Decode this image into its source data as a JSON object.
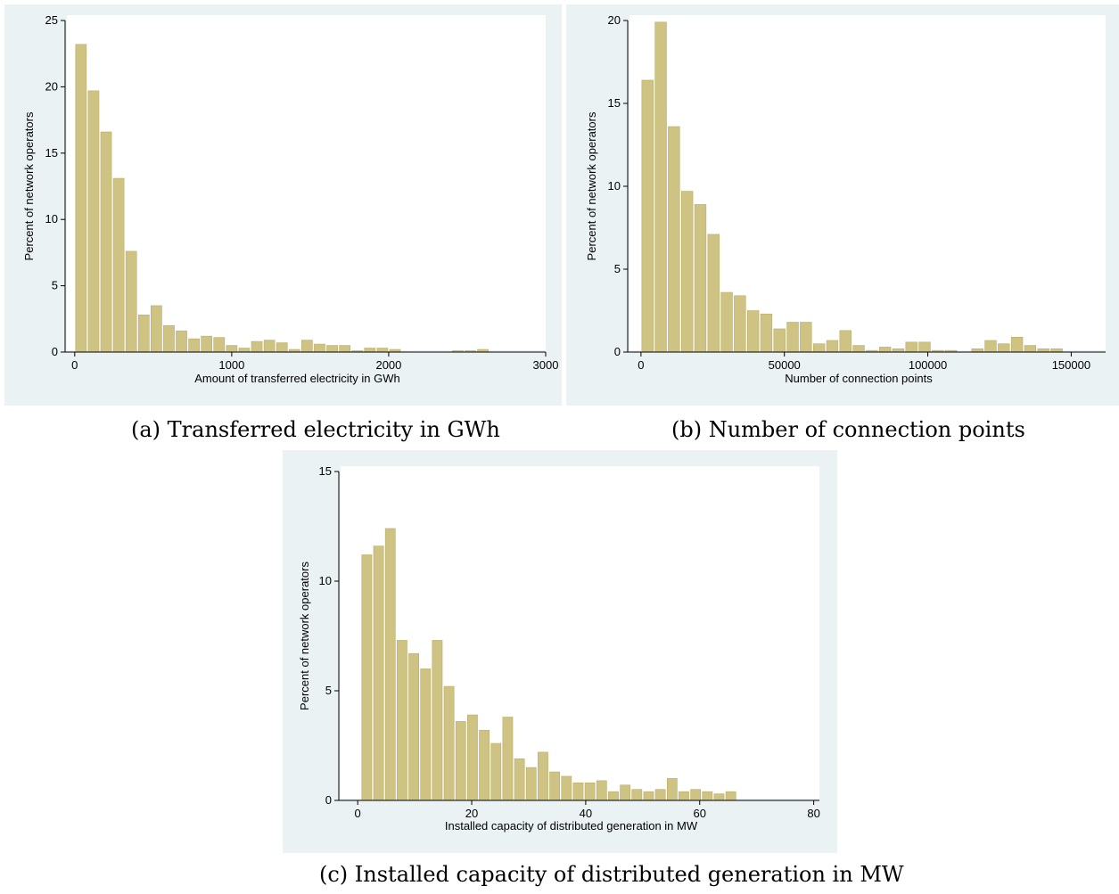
{
  "captions": {
    "a": "(a) Transferred electricity in GWh",
    "b": "(b) Number of connection points",
    "c": "(c) Installed capacity of distributed generation in MW"
  },
  "colors": {
    "bar": "#cfc383",
    "bar_edge": "#b9ad6a",
    "panel": "#eaf2f3",
    "plot": "#ffffff",
    "axis": "#000000"
  },
  "chart_data": [
    {
      "id": "a",
      "type": "bar",
      "xlabel": "Amount of transferred electricity in GWh",
      "ylabel": "Percent of network operators",
      "xlim": [
        -50,
        3000
      ],
      "ylim": [
        0,
        25
      ],
      "xticks": [
        0,
        1000,
        2000,
        3000
      ],
      "yticks": [
        0,
        5,
        10,
        15,
        20,
        25
      ],
      "bin_width": 80,
      "first_bin_center": 40,
      "values": [
        23.2,
        19.7,
        16.6,
        13.1,
        7.6,
        2.8,
        3.5,
        2.0,
        1.6,
        1.0,
        1.2,
        1.1,
        0.5,
        0.3,
        0.8,
        0.9,
        0.7,
        0.2,
        0.9,
        0.6,
        0.5,
        0.5,
        0.1,
        0.3,
        0.3,
        0.2,
        0.0,
        0.0,
        0.0,
        0.0,
        0.1,
        0.1,
        0.2
      ]
    },
    {
      "id": "b",
      "type": "bar",
      "xlabel": "Number of connection points",
      "ylabel": "Percent of network operators",
      "xlim": [
        -4000,
        162000
      ],
      "ylim": [
        0,
        20
      ],
      "xticks": [
        0,
        50000,
        100000,
        150000
      ],
      "yticks": [
        0,
        5,
        10,
        15,
        20
      ],
      "bin_width": 4600,
      "first_bin_center": 2300,
      "values": [
        16.4,
        19.9,
        13.6,
        9.7,
        8.9,
        7.1,
        3.6,
        3.4,
        2.5,
        2.3,
        1.4,
        1.8,
        1.8,
        0.5,
        0.7,
        1.3,
        0.4,
        0.1,
        0.3,
        0.2,
        0.6,
        0.6,
        0.1,
        0.1,
        0.0,
        0.2,
        0.7,
        0.5,
        0.9,
        0.4,
        0.2,
        0.2
      ]
    },
    {
      "id": "c",
      "type": "bar",
      "xlabel": "Installed capacity of distributed generation in MW",
      "ylabel": "Percent of network operators",
      "xlim": [
        -3,
        81
      ],
      "ylim": [
        0,
        15
      ],
      "xticks": [
        0,
        20,
        40,
        60,
        80
      ],
      "yticks": [
        0,
        5,
        10,
        15
      ],
      "bin_width": 2.06,
      "first_bin_center": 1.6,
      "values": [
        11.2,
        11.6,
        12.4,
        7.3,
        6.7,
        6.0,
        7.3,
        5.2,
        3.6,
        3.9,
        3.2,
        2.6,
        3.8,
        1.9,
        1.5,
        2.2,
        1.3,
        1.1,
        0.8,
        0.8,
        0.9,
        0.4,
        0.7,
        0.5,
        0.4,
        0.5,
        1.0,
        0.4,
        0.5,
        0.4,
        0.3,
        0.4
      ]
    }
  ]
}
